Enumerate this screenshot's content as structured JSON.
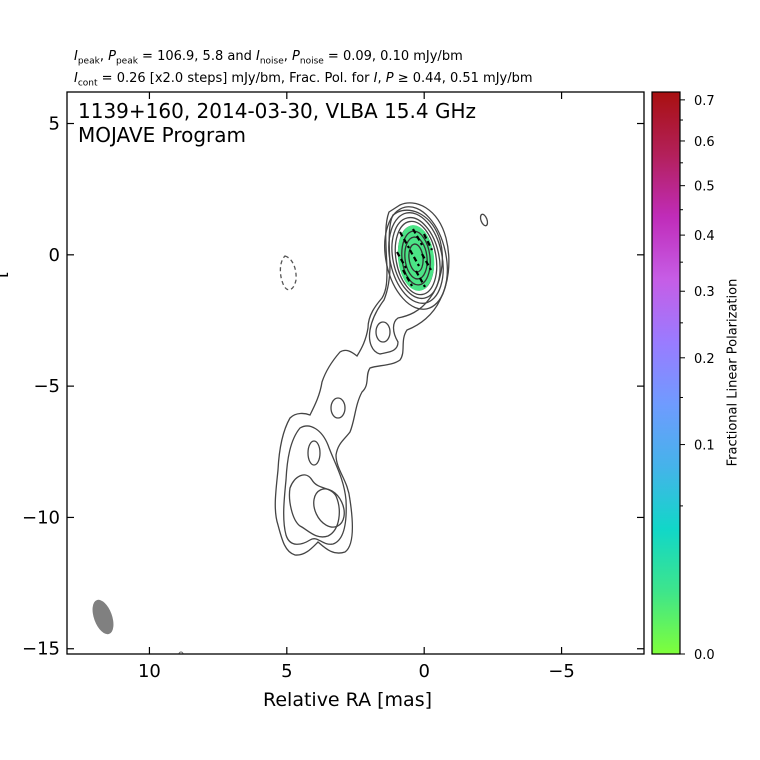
{
  "header": {
    "line1": "Ipeak, Ppeak = 106.9, 5.8 and Inoise, Pnoise = 0.09, 0.10 mJy/bm",
    "line2": "Icont = 0.26 [x2.0 steps] mJy/bm, Frac. Pol. for I, P ≥ 0.44, 0.51 mJy/bm"
  },
  "annotation": {
    "line1": "1139+160, 2014-03-30, VLBA 15.4 GHz",
    "line2": "MOJAVE Program"
  },
  "chart_data": [
    {
      "type": "contour",
      "xlabel": "Relative RA [mas]",
      "ylabel": "[",
      "xlim": [
        13.0,
        -8.0
      ],
      "ylim": [
        -15.2,
        6.2
      ],
      "x_inverted": true,
      "xticks": [
        10,
        5,
        0,
        -5
      ],
      "xtick_labels": [
        "10",
        "5",
        "0",
        "−5"
      ],
      "yticks": [
        5,
        0,
        -5,
        -10,
        -15
      ],
      "ytick_labels": [
        "5",
        "0",
        "−5",
        "−10",
        "−15"
      ],
      "source": "1139+160",
      "date": "2014-03-30",
      "instrument": "VLBA 15.4 GHz",
      "I_peak_mJy_per_bm": 106.9,
      "P_peak_mJy_per_bm": 5.8,
      "I_noise_mJy_per_bm": 0.09,
      "P_noise_mJy_per_bm": 0.1,
      "I_cont_mJy_per_bm": 0.26,
      "contour_step_factor": 2.0,
      "frac_pol_cut_I_mJy_per_bm": 0.44,
      "frac_pol_cut_P_mJy_per_bm": 0.51,
      "core_position": [
        0.0,
        -0.2
      ],
      "negative_contour_position": [
        4.9,
        -0.7
      ],
      "beam": {
        "position": [
          11.9,
          -13.8
        ],
        "color": "#808080"
      },
      "polarization_region": {
        "position": [
          0.0,
          -0.2
        ],
        "fractional_polarization": 0.05,
        "color": "#4be486"
      },
      "contour_color": "#444444"
    },
    {
      "type": "colorbar",
      "label": "Fractional Linear Polarization",
      "range": [
        0.0,
        0.72
      ],
      "scale": "sqrt",
      "ticks": [
        0.0,
        0.1,
        0.2,
        0.3,
        0.4,
        0.5,
        0.6,
        0.7
      ],
      "tick_labels": [
        "0.0",
        "0.1",
        "0.2",
        "0.3",
        "0.4",
        "0.5",
        "0.6",
        "0.7"
      ],
      "colors": [
        "#7fff3a",
        "#3ee58b",
        "#11d7c8",
        "#45b3ea",
        "#6f9bff",
        "#9a7bff",
        "#c65de6",
        "#c02cb9",
        "#b3205a",
        "#a81010"
      ]
    }
  ]
}
